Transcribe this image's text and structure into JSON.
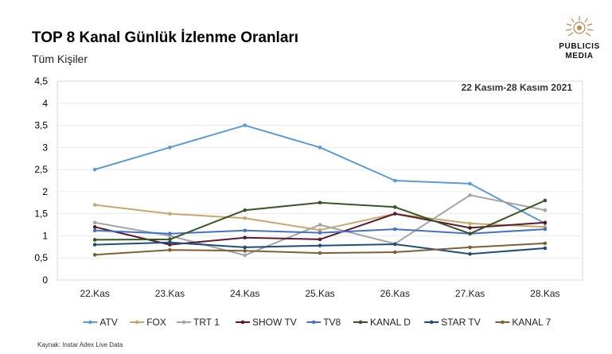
{
  "header": {
    "title": "TOP 8 Kanal Günlük İzlenme Oranları",
    "subtitle": "Tüm Kişiler"
  },
  "logo": {
    "line1": "PUBLICIS",
    "line2": "MEDIA"
  },
  "footer": {
    "source": "Kaynak: Instar  Adex Live Data"
  },
  "chart_data": {
    "type": "line",
    "title": "",
    "annotation": "22 Kasım-28 Kasım 2021",
    "xlabel": "",
    "ylabel": "",
    "categories": [
      "22.Kas",
      "23.Kas",
      "24.Kas",
      "25.Kas",
      "26.Kas",
      "27.Kas",
      "28.Kas"
    ],
    "ylim": [
      0,
      4.5
    ],
    "yticks": [
      "0",
      "0,5",
      "1",
      "1,5",
      "2",
      "2,5",
      "3",
      "3,5",
      "4",
      "4,5"
    ],
    "grid": true,
    "legend": "bottom",
    "series": [
      {
        "name": "ATV",
        "color": "#5b9bd5",
        "values": [
          2.5,
          3.0,
          3.5,
          3.0,
          2.25,
          2.18,
          1.28
        ]
      },
      {
        "name": "FOX",
        "color": "#c9a66b",
        "values": [
          1.7,
          1.5,
          1.4,
          1.13,
          1.5,
          1.28,
          1.2
        ]
      },
      {
        "name": "TRT 1",
        "color": "#a5a5a5",
        "values": [
          1.3,
          1.0,
          0.56,
          1.25,
          0.82,
          1.92,
          1.58
        ]
      },
      {
        "name": "SHOW TV",
        "color": "#5b1a2e",
        "values": [
          1.2,
          0.8,
          0.96,
          0.92,
          1.5,
          1.18,
          1.3
        ]
      },
      {
        "name": "TV8",
        "color": "#4472c4",
        "values": [
          1.12,
          1.05,
          1.12,
          1.07,
          1.15,
          1.05,
          1.15
        ]
      },
      {
        "name": "KANAL D",
        "color": "#375623",
        "values": [
          0.91,
          0.92,
          1.58,
          1.75,
          1.65,
          1.05,
          1.8
        ]
      },
      {
        "name": "STAR TV",
        "color": "#1f4e79",
        "values": [
          0.8,
          0.85,
          0.74,
          0.78,
          0.81,
          0.59,
          0.72
        ]
      },
      {
        "name": "KANAL 7",
        "color": "#7f6035",
        "values": [
          0.57,
          0.68,
          0.66,
          0.61,
          0.63,
          0.74,
          0.83
        ]
      }
    ]
  }
}
